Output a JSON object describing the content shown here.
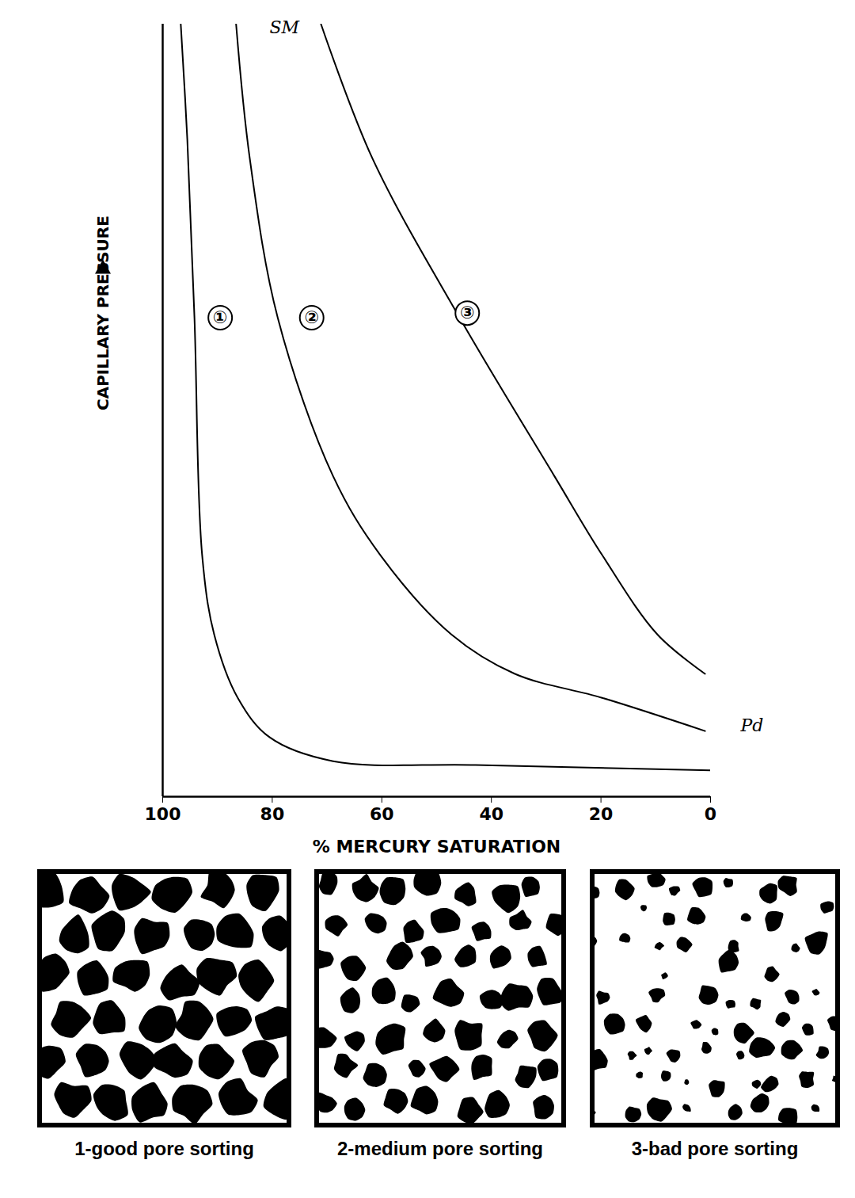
{
  "chart_data": {
    "type": "line",
    "xlabel": "% MERCURY SATURATION",
    "ylabel": "CAPILLARY PRESSURE",
    "xlim": [
      100,
      0
    ],
    "xticks": [
      100,
      80,
      60,
      40,
      20,
      0
    ],
    "ylim": [
      0,
      100
    ],
    "yticks": [],
    "tick_labels": "x",
    "grid": false,
    "color": "#000000",
    "series": [
      {
        "name": "①",
        "x": [
          96.7,
          95.5,
          94.2,
          92.8,
          90.6,
          86.3,
          80.5,
          68.9,
          42.9,
          0
        ],
        "values": [
          100,
          85,
          62,
          31.3,
          21,
          12.8,
          7.7,
          4.6,
          4.1,
          3.4
        ],
        "label_x": 89.5,
        "label_y": 62
      },
      {
        "name": "②",
        "x": [
          86.6,
          84.1,
          79,
          68.9,
          60.3,
          47.3,
          35.7,
          19.8,
          1
        ],
        "values": [
          100,
          82.6,
          62,
          41.5,
          31.3,
          21,
          15.9,
          12.8,
          8.5
        ],
        "label_x": 72.8,
        "label_y": 62
      },
      {
        "name": "③",
        "x": [
          71.1,
          61.7,
          45.8,
          28.5,
          19.8,
          9.7,
          1
        ],
        "values": [
          100,
          82.6,
          62,
          41.5,
          31.3,
          21,
          15.9
        ],
        "label_x": 44.4,
        "label_y": 62.6
      }
    ],
    "annotations": [
      {
        "text": "SM",
        "x": 80.5,
        "y": 99.5
      },
      {
        "text": "Pd",
        "x": -5.5,
        "y": 9.2
      }
    ]
  },
  "panels": [
    {
      "caption": "1-good pore sorting"
    },
    {
      "caption": "2-medium pore sorting"
    },
    {
      "caption": "3-bad pore sorting"
    }
  ]
}
